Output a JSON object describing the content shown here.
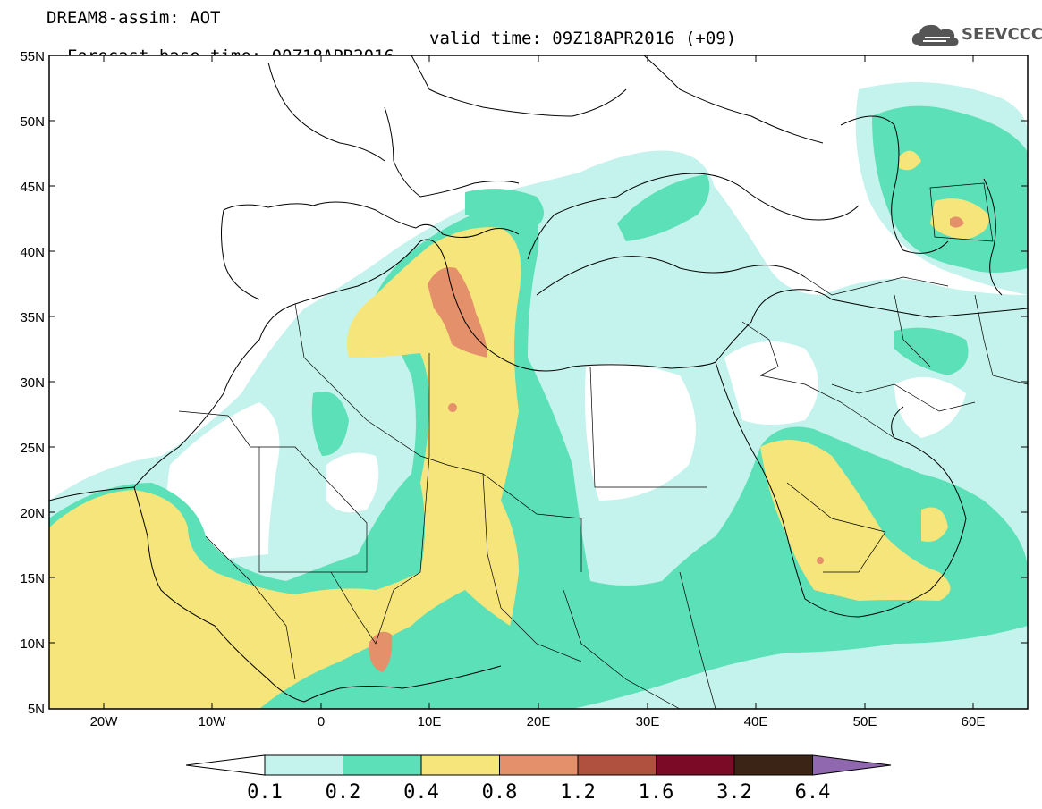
{
  "header": {
    "line1": "DREAM8-assim: AOT",
    "forecast": "Forecast base time: 00Z18APR2016",
    "valid": "valid time: 09Z18APR2016 (+09)"
  },
  "logo": {
    "text": "SEEVCCC",
    "icon": "cloud-icon"
  },
  "map": {
    "lat_labels": [
      "55N",
      "50N",
      "45N",
      "40N",
      "35N",
      "30N",
      "25N",
      "20N",
      "15N",
      "10N",
      "5N"
    ],
    "lon_labels": [
      "20W",
      "10W",
      "0",
      "10E",
      "20E",
      "30E",
      "40E",
      "50E",
      "60E"
    ],
    "lat_range": [
      5,
      55
    ],
    "lon_range": [
      -25,
      65
    ]
  },
  "legend": {
    "labels": [
      "0.1",
      "0.2",
      "0.4",
      "0.8",
      "1.2",
      "1.6",
      "3.2",
      "6.4"
    ],
    "colors": [
      "#ffffff",
      "#c4f2ec",
      "#5be0b7",
      "#f5e57a",
      "#e4906b",
      "#b0503f",
      "#7a0a25",
      "#3b2416",
      "#8f68b0"
    ]
  }
}
